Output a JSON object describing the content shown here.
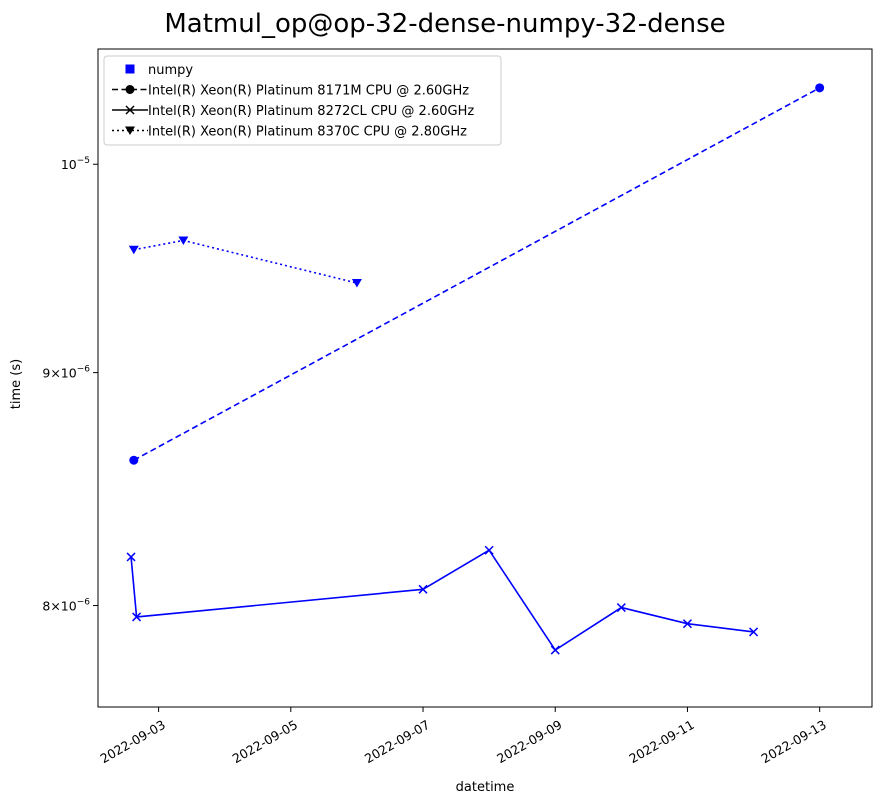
{
  "chart_data": {
    "type": "line",
    "title": "Matmul_op@op-32-dense-numpy-32-dense",
    "xlabel": "datetime",
    "ylabel": "time (s)",
    "y_scale": "log",
    "xlim": [
      "2022-09-02T02:00",
      "2022-09-13T19:00"
    ],
    "ylim": [
      7.6e-06,
      1.06e-05
    ],
    "x_ticks": [
      "2022-09-03",
      "2022-09-05",
      "2022-09-07",
      "2022-09-09",
      "2022-09-11",
      "2022-09-13"
    ],
    "y_ticks": [
      {
        "value": 8e-06,
        "mantissa": "8",
        "exponent": "−6"
      },
      {
        "value": 9e-06,
        "mantissa": "9",
        "exponent": "−6"
      },
      {
        "value": 1e-05,
        "mantissa": "10",
        "exponent": "−5"
      }
    ],
    "legend_location": "upper-left",
    "grid": false,
    "color": "#0000ff",
    "legend": [
      {
        "label": "numpy",
        "marker": "square",
        "line": "none"
      },
      {
        "label": "Intel(R) Xeon(R) Platinum 8171M CPU @ 2.60GHz",
        "marker": "circle",
        "line": "dashed"
      },
      {
        "label": "Intel(R) Xeon(R) Platinum 8272CL CPU @ 2.60GHz",
        "marker": "x",
        "line": "solid"
      },
      {
        "label": "Intel(R) Xeon(R) Platinum 8370C CPU @ 2.80GHz",
        "marker": "triangle-down",
        "line": "dotted"
      }
    ],
    "series": [
      {
        "name": "Intel(R) Xeon(R) Platinum 8171M CPU @ 2.60GHz",
        "marker": "circle",
        "line": "dashed",
        "points": [
          {
            "x": "2022-09-02T15:00",
            "y": 8.61e-06
          },
          {
            "x": "2022-09-13T00:00",
            "y": 1.0394e-05
          }
        ]
      },
      {
        "name": "Intel(R) Xeon(R) Platinum 8272CL CPU @ 2.60GHz",
        "marker": "x",
        "line": "solid",
        "points": [
          {
            "x": "2022-09-02T14:00",
            "y": 8.199e-06
          },
          {
            "x": "2022-09-02T16:00",
            "y": 7.954e-06
          },
          {
            "x": "2022-09-07T00:00",
            "y": 8.066e-06
          },
          {
            "x": "2022-09-08T00:00",
            "y": 8.227e-06
          },
          {
            "x": "2022-09-09T00:00",
            "y": 7.822e-06
          },
          {
            "x": "2022-09-10T00:00",
            "y": 7.992e-06
          },
          {
            "x": "2022-09-11T00:00",
            "y": 7.927e-06
          },
          {
            "x": "2022-09-12T00:00",
            "y": 7.894e-06
          }
        ]
      },
      {
        "name": "Intel(R) Xeon(R) Platinum 8370C CPU @ 2.80GHz",
        "marker": "triangle-down",
        "line": "dotted",
        "points": [
          {
            "x": "2022-09-02T15:00",
            "y": 9.577e-06
          },
          {
            "x": "2022-09-03T09:00",
            "y": 9.622e-06
          },
          {
            "x": "2022-09-06T00:00",
            "y": 9.417e-06
          }
        ]
      }
    ]
  }
}
